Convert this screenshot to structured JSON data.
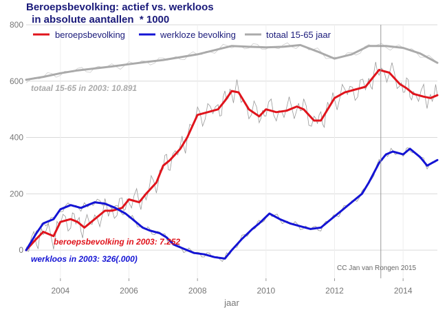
{
  "chart_data": {
    "type": "line",
    "title": "Beroepsbevolking: actief vs. werkloos",
    "subtitle": " in absolute aantallen  * 1000",
    "xlabel": "jaar",
    "ylabel": "",
    "xlim": [
      2003.0,
      2015.0
    ],
    "ylim": [
      -100,
      800
    ],
    "x_ticks": [
      2004,
      2006,
      2008,
      2010,
      2012,
      2014
    ],
    "y_ticks": [
      0,
      200,
      400,
      600,
      800
    ],
    "vline_x": 2013.35,
    "grid": true,
    "legend_position": "top",
    "series": [
      {
        "name": "beroepsbevolking",
        "color": "#e0141c",
        "x": [
          2003.0,
          2003.3,
          2003.5,
          2003.8,
          2004.0,
          2004.3,
          2004.5,
          2004.7,
          2005.0,
          2005.3,
          2005.5,
          2005.8,
          2006.0,
          2006.3,
          2006.5,
          2006.8,
          2007.0,
          2007.2,
          2007.5,
          2007.7,
          2008.0,
          2008.3,
          2008.6,
          2008.8,
          2009.0,
          2009.2,
          2009.5,
          2009.8,
          2010.0,
          2010.3,
          2010.6,
          2010.9,
          2011.1,
          2011.4,
          2011.6,
          2011.8,
          2012.0,
          2012.3,
          2012.6,
          2012.9,
          2013.1,
          2013.3,
          2013.6,
          2013.9,
          2014.1,
          2014.3,
          2014.6,
          2014.8,
          2015.0
        ],
        "values": [
          0,
          40,
          65,
          50,
          100,
          110,
          100,
          80,
          110,
          140,
          140,
          150,
          180,
          170,
          200,
          240,
          300,
          320,
          360,
          400,
          480,
          490,
          500,
          530,
          565,
          560,
          500,
          475,
          500,
          490,
          495,
          510,
          500,
          460,
          460,
          500,
          540,
          560,
          570,
          580,
          610,
          640,
          630,
          590,
          575,
          555,
          545,
          540,
          550
        ]
      },
      {
        "name": "werkloze bevolking",
        "color": "#1414d4",
        "x": [
          2003.0,
          2003.3,
          2003.5,
          2003.8,
          2004.0,
          2004.3,
          2004.6,
          2004.8,
          2005.0,
          2005.3,
          2005.6,
          2005.9,
          2006.1,
          2006.4,
          2006.6,
          2006.9,
          2007.1,
          2007.3,
          2007.6,
          2007.9,
          2008.2,
          2008.5,
          2008.8,
          2009.0,
          2009.3,
          2009.6,
          2009.8,
          2010.1,
          2010.4,
          2010.7,
          2011.0,
          2011.3,
          2011.6,
          2011.9,
          2012.2,
          2012.5,
          2012.8,
          2013.0,
          2013.3,
          2013.5,
          2013.7,
          2014.0,
          2014.2,
          2014.5,
          2014.7,
          2015.0
        ],
        "values": [
          0,
          60,
          95,
          110,
          145,
          160,
          150,
          160,
          170,
          165,
          150,
          130,
          110,
          80,
          70,
          60,
          45,
          20,
          5,
          -10,
          -15,
          -25,
          -30,
          0,
          40,
          75,
          95,
          130,
          110,
          95,
          85,
          75,
          80,
          110,
          140,
          170,
          200,
          240,
          310,
          340,
          350,
          340,
          360,
          330,
          300,
          320
        ]
      },
      {
        "name": "totaal 15-65 jaar",
        "color": "#aaaaaa",
        "x": [
          2003.0,
          2003.5,
          2004.0,
          2004.5,
          2005.0,
          2005.5,
          2006.0,
          2006.5,
          2007.0,
          2007.5,
          2008.0,
          2008.5,
          2009.0,
          2009.5,
          2010.0,
          2010.5,
          2011.0,
          2011.5,
          2012.0,
          2012.5,
          2013.0,
          2013.5,
          2014.0,
          2014.5,
          2015.0
        ],
        "values": [
          605,
          615,
          628,
          638,
          645,
          652,
          660,
          668,
          675,
          685,
          695,
          710,
          725,
          722,
          720,
          722,
          728,
          705,
          680,
          695,
          725,
          725,
          718,
          698,
          665
        ]
      }
    ],
    "annotations": [
      {
        "text": "totaal 15-65 in 2003: 10.891",
        "color": "#aaaaaa"
      },
      {
        "text": "beroepsbevolking in 2003: 7.252",
        "color": "#e0141c"
      },
      {
        "text": "werkloos in 2003: 326(.000)",
        "color": "#1414d4"
      }
    ],
    "credit": "CC Jan van Rongen 2015"
  }
}
